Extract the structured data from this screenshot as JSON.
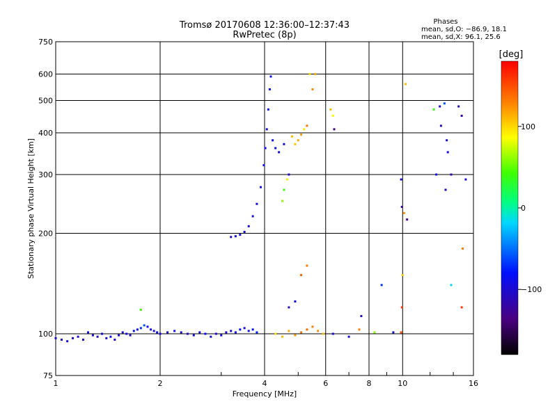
{
  "chart_data": {
    "type": "scatter",
    "title": "Tromsø 20170608 12:36:00–12:37:43",
    "subtitle": "RwPretec (8p)",
    "xlabel": "Frequency [MHz]",
    "ylabel": "Stationary phase Virtual Height [km]",
    "xscale": "log",
    "yscale": "log",
    "xlim": [
      1,
      16
    ],
    "ylim": [
      75,
      750
    ],
    "x_ticks": [
      1,
      2,
      4,
      6,
      8,
      10,
      16
    ],
    "x_tick_labels": [
      "1",
      "2",
      "4",
      "6",
      "8",
      "10",
      "16"
    ],
    "y_ticks": [
      75,
      100,
      200,
      300,
      400,
      500,
      600,
      750
    ],
    "y_tick_labels": [
      "75",
      "100",
      "200",
      "300",
      "400",
      "500",
      "600",
      "750"
    ],
    "grid": true,
    "info": {
      "heading": "Phases",
      "line_o": "mean, sd,O: −86.9, 18.1",
      "line_x": "mean, sd,X:  96.1, 25.6"
    },
    "colorbar": {
      "label": "[deg]",
      "range": [
        -180,
        180
      ],
      "ticks": [
        100,
        0,
        -100
      ],
      "tick_labels": [
        "100",
        "0",
        "−100"
      ]
    },
    "series": [
      {
        "name": "Phase-colored echoes (mean phase in deg)",
        "points": [
          [
            1.0,
            97,
            -95
          ],
          [
            1.04,
            96,
            -100
          ],
          [
            1.08,
            95,
            -92
          ],
          [
            1.12,
            97,
            -105
          ],
          [
            1.16,
            98,
            -98
          ],
          [
            1.2,
            96,
            -102
          ],
          [
            1.24,
            101,
            -88
          ],
          [
            1.28,
            99,
            -96
          ],
          [
            1.32,
            98,
            -110
          ],
          [
            1.36,
            100,
            -94
          ],
          [
            1.4,
            97,
            -99
          ],
          [
            1.44,
            98,
            -86
          ],
          [
            1.48,
            96,
            -101
          ],
          [
            1.52,
            99,
            -93
          ],
          [
            1.56,
            101,
            -97
          ],
          [
            1.6,
            100,
            -90
          ],
          [
            1.64,
            99,
            -104
          ],
          [
            1.68,
            102,
            -85
          ],
          [
            1.72,
            103,
            -92
          ],
          [
            1.76,
            104,
            -70
          ],
          [
            1.8,
            106,
            -60
          ],
          [
            1.84,
            105,
            -88
          ],
          [
            1.88,
            103,
            -94
          ],
          [
            1.92,
            102,
            -99
          ],
          [
            1.96,
            101,
            -91
          ],
          [
            2.0,
            100,
            -95
          ],
          [
            2.1,
            101,
            -100
          ],
          [
            2.2,
            102,
            -88
          ],
          [
            2.3,
            101,
            -97
          ],
          [
            2.4,
            100,
            -103
          ],
          [
            2.5,
            99,
            -90
          ],
          [
            2.6,
            101,
            -96
          ],
          [
            2.7,
            100,
            -84
          ],
          [
            2.8,
            98,
            -95
          ],
          [
            2.9,
            100,
            -100
          ],
          [
            3.0,
            99,
            -89
          ],
          [
            3.1,
            101,
            -98
          ],
          [
            3.2,
            102,
            -92
          ],
          [
            3.3,
            101,
            -86
          ],
          [
            3.4,
            103,
            -80
          ],
          [
            3.5,
            104,
            -95
          ],
          [
            3.6,
            102,
            -90
          ],
          [
            3.7,
            103,
            -85
          ],
          [
            3.8,
            101,
            -75
          ],
          [
            1.76,
            118,
            40
          ],
          [
            3.2,
            195,
            -100
          ],
          [
            3.3,
            196,
            -98
          ],
          [
            3.4,
            198,
            -96
          ],
          [
            3.5,
            202,
            -95
          ],
          [
            3.6,
            210,
            -94
          ],
          [
            3.7,
            225,
            -93
          ],
          [
            3.8,
            245,
            -92
          ],
          [
            3.9,
            275,
            -91
          ],
          [
            3.98,
            320,
            -90
          ],
          [
            4.02,
            360,
            -89
          ],
          [
            4.06,
            410,
            -88
          ],
          [
            4.1,
            470,
            -87
          ],
          [
            4.14,
            540,
            -86
          ],
          [
            4.17,
            590,
            -85
          ],
          [
            4.22,
            380,
            -86
          ],
          [
            4.3,
            360,
            -88
          ],
          [
            4.4,
            350,
            -87
          ],
          [
            4.55,
            370,
            -92
          ],
          [
            4.7,
            300,
            -105
          ],
          [
            4.5,
            250,
            60
          ],
          [
            4.55,
            270,
            40
          ],
          [
            4.65,
            290,
            90
          ],
          [
            4.8,
            390,
            110
          ],
          [
            4.9,
            370,
            105
          ],
          [
            5.0,
            380,
            115
          ],
          [
            5.1,
            395,
            120
          ],
          [
            5.2,
            410,
            95
          ],
          [
            5.3,
            420,
            135
          ],
          [
            5.4,
            600,
            100
          ],
          [
            5.5,
            540,
            125
          ],
          [
            5.6,
            600,
            115
          ],
          [
            6.2,
            470,
            110
          ],
          [
            6.3,
            450,
            90
          ],
          [
            6.35,
            410,
            -130
          ],
          [
            4.3,
            100,
            100
          ],
          [
            4.5,
            98,
            110
          ],
          [
            4.7,
            102,
            115
          ],
          [
            4.9,
            99,
            120
          ],
          [
            5.1,
            101,
            135
          ],
          [
            5.3,
            103,
            140
          ],
          [
            5.5,
            105,
            130
          ],
          [
            5.7,
            102,
            125
          ],
          [
            5.9,
            100,
            110
          ],
          [
            4.7,
            120,
            -110
          ],
          [
            4.9,
            125,
            -90
          ],
          [
            5.1,
            150,
            140
          ],
          [
            5.3,
            160,
            130
          ],
          [
            6.3,
            100,
            -100
          ],
          [
            7.0,
            98,
            -95
          ],
          [
            7.5,
            103,
            130
          ],
          [
            7.6,
            113,
            -110
          ],
          [
            8.3,
            101,
            60
          ],
          [
            8.7,
            140,
            -70
          ],
          [
            9.4,
            101,
            -100
          ],
          [
            9.9,
            101,
            150
          ],
          [
            9.95,
            120,
            160
          ],
          [
            10.0,
            150,
            105
          ],
          [
            10.1,
            230,
            120
          ],
          [
            9.9,
            290,
            -95
          ],
          [
            9.95,
            240,
            -120
          ],
          [
            10.2,
            560,
            110
          ],
          [
            10.3,
            220,
            -130
          ],
          [
            12.3,
            470,
            40
          ],
          [
            12.8,
            480,
            -100
          ],
          [
            13.2,
            490,
            -60
          ],
          [
            12.5,
            300,
            -90
          ],
          [
            12.9,
            420,
            -110
          ],
          [
            13.4,
            380,
            -100
          ],
          [
            13.5,
            350,
            -95
          ],
          [
            13.3,
            270,
            -100
          ],
          [
            13.8,
            300,
            -120
          ],
          [
            14.5,
            480,
            -110
          ],
          [
            14.8,
            450,
            -120
          ],
          [
            15.2,
            290,
            -100
          ],
          [
            14.9,
            180,
            130
          ],
          [
            14.8,
            120,
            160
          ],
          [
            13.8,
            140,
            -20
          ]
        ]
      }
    ]
  }
}
